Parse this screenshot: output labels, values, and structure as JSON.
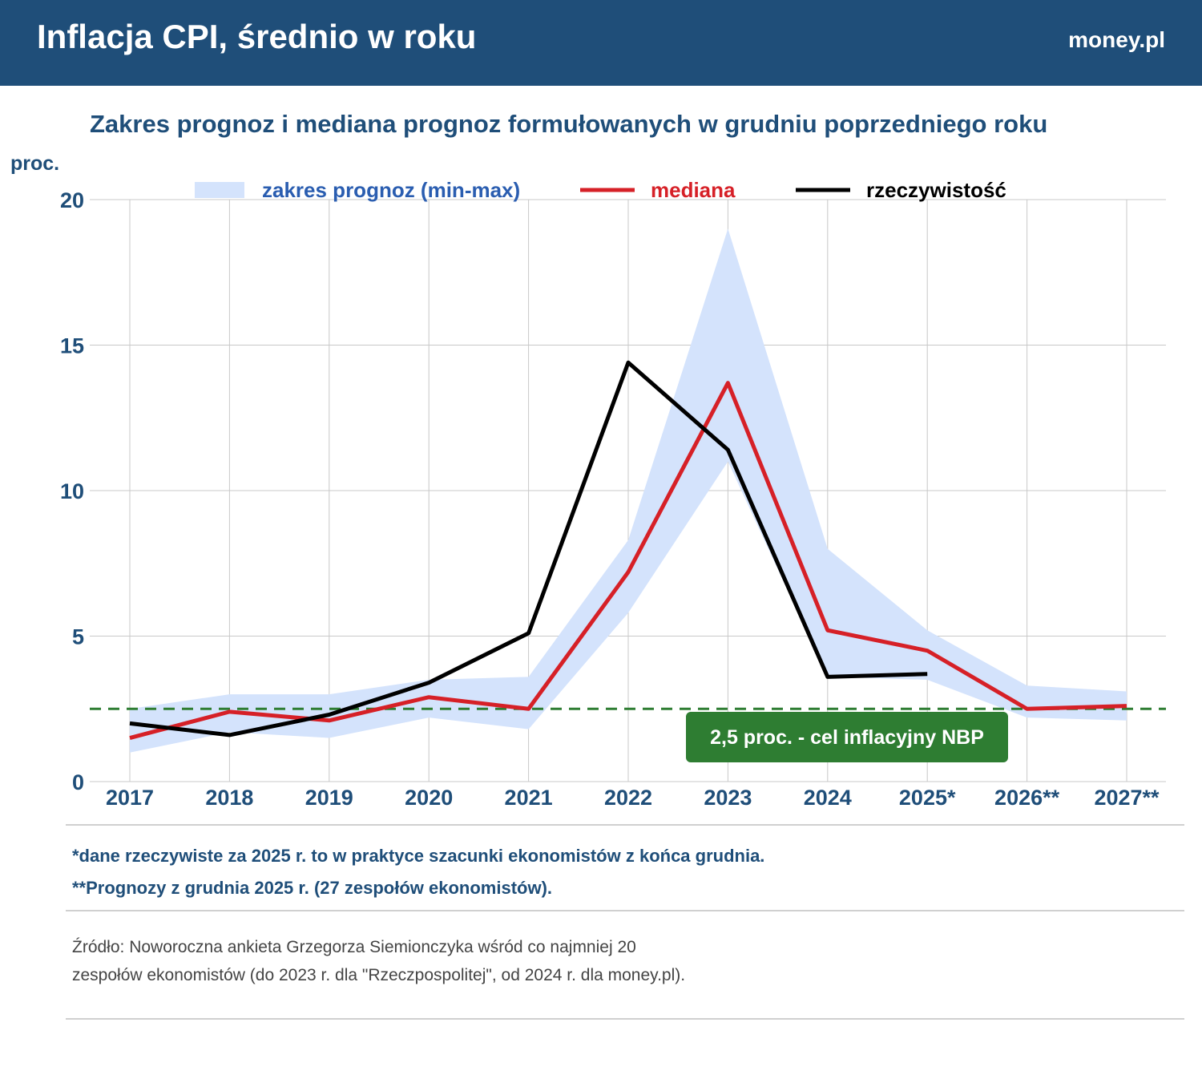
{
  "header": {
    "title": "Inflacja CPI, średnio w roku",
    "brand": "money.pl"
  },
  "chart_data": {
    "type": "line",
    "title": "Zakres prognoz i mediana prognoz formułowanych w grudniu poprzedniego roku",
    "ylabel": "proc.",
    "ylim": [
      0,
      20
    ],
    "yticks": [
      "0",
      "5",
      "10",
      "15",
      "20"
    ],
    "categories": [
      "2017",
      "2018",
      "2019",
      "2020",
      "2021",
      "2022",
      "2023",
      "2024",
      "2025*",
      "2026**",
      "2027**"
    ],
    "range": {
      "name": "zakres prognoz (min-max)",
      "color": "#d4e3fc",
      "max": [
        2.5,
        3.0,
        3.0,
        3.5,
        3.6,
        8.3,
        19.0,
        8.0,
        5.2,
        3.3,
        3.1
      ],
      "min": [
        1.0,
        1.7,
        1.5,
        2.2,
        1.8,
        5.8,
        11.0,
        3.6,
        3.5,
        2.2,
        2.1
      ]
    },
    "series": [
      {
        "name": "mediana",
        "color": "#d62027",
        "values": [
          1.5,
          2.4,
          2.1,
          2.9,
          2.5,
          7.2,
          13.7,
          5.2,
          4.5,
          2.5,
          2.6
        ]
      },
      {
        "name": "rzeczywistość",
        "color": "#000000",
        "values": [
          2.0,
          1.6,
          2.3,
          3.4,
          5.1,
          14.4,
          11.4,
          3.6,
          3.7,
          null,
          null
        ]
      }
    ],
    "target": {
      "value": 2.5,
      "label": "2,5 proc. - cel inflacyjny NBP",
      "color": "#2e7d32"
    },
    "legend_placement": "top",
    "grid": true
  },
  "notes": [
    "*dane rzeczywiste za 2025 r. to w praktyce szacunki ekonomistów z końca grudnia.",
    "**Prognozy z grudnia 2025 r. (27 zespołów ekonomistów)."
  ],
  "source": [
    "Źródło: Noworoczna ankieta Grzegorza Siemionczyka wśród co najmniej 20",
    "zespołów ekonomistów (do  2023 r. dla \"Rzeczpospolitej\", od 2024 r. dla money.pl)."
  ]
}
